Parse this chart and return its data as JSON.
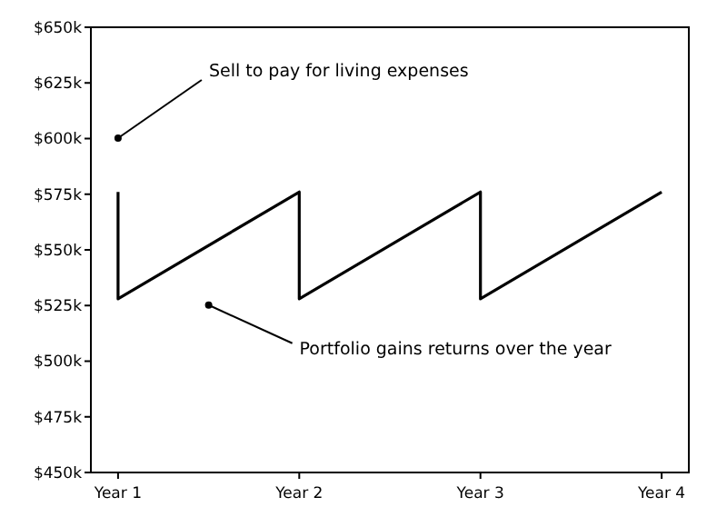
{
  "chart_data": {
    "type": "line",
    "categories": [
      "Year 1",
      "Year 2",
      "Year 3",
      "Year 4"
    ],
    "series": [
      {
        "x": [
          "Year 1",
          "Year 1",
          "Year 2",
          "Year 2",
          "Year 3",
          "Year 3",
          "Year 4"
        ],
        "values": [
          576000,
          528000,
          576000,
          528000,
          576000,
          528000,
          576000
        ],
        "color": "#000000"
      }
    ],
    "marker": "none",
    "line_style": "solid",
    "grid": false,
    "ylim": [
      450000,
      650000
    ],
    "yticks": [
      {
        "value": 450000,
        "label": "$450k"
      },
      {
        "value": 475000,
        "label": "$475k"
      },
      {
        "value": 500000,
        "label": "$500k"
      },
      {
        "value": 525000,
        "label": "$525k"
      },
      {
        "value": 550000,
        "label": "$550k"
      },
      {
        "value": 575000,
        "label": "$575k"
      },
      {
        "value": 600000,
        "label": "$600k"
      },
      {
        "value": 625000,
        "label": "$625k"
      },
      {
        "value": 650000,
        "label": "$650k"
      }
    ],
    "annotations": [
      "Sell to pay for living expenses",
      "Portfolio gains returns over the year"
    ]
  }
}
